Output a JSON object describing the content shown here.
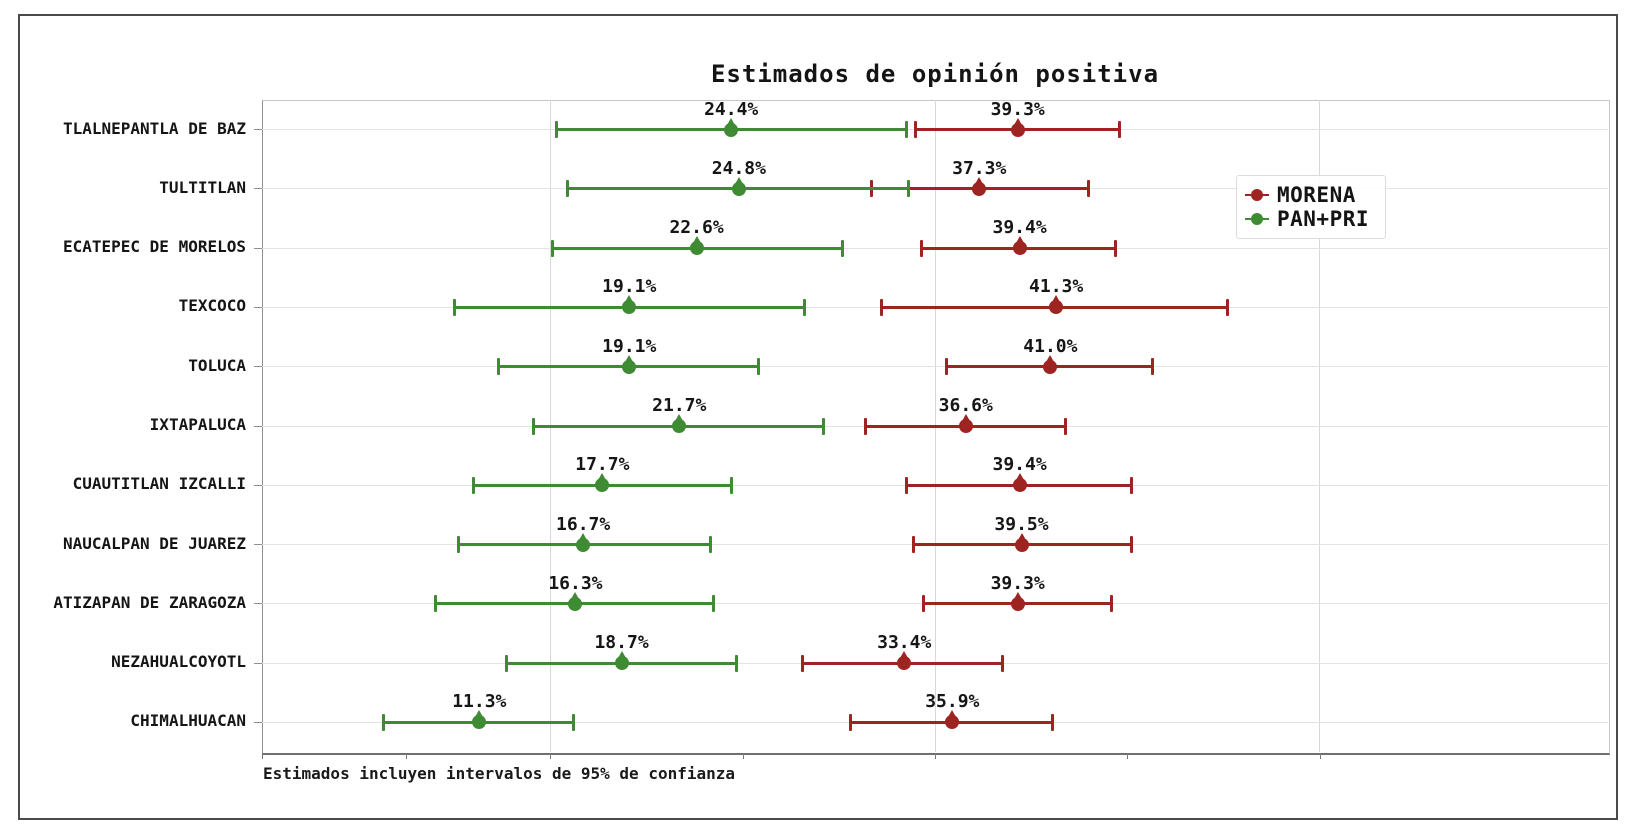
{
  "figure": {
    "title": "Estimados de opinión positiva",
    "footnote": "Estimados incluyen intervalos de 95% de confianza"
  },
  "legend": {
    "position": "upper right",
    "items": [
      {
        "label": "MORENA",
        "color": "#9e2421"
      },
      {
        "label": "PAN+PRI",
        "color": "#3f8b34"
      }
    ]
  },
  "chart_data": {
    "type": "scatter",
    "subtype": "horizontal-dot-plot-with-error-bars",
    "title": "Estimados de opinión positiva",
    "xlabel": "",
    "ylabel": "",
    "xlim": [
      0,
      70
    ],
    "grid": true,
    "gridlines_x_pct": [
      15,
      35,
      55
    ],
    "ticks_x_pct": [
      0,
      7.5,
      15,
      25,
      35,
      45,
      55
    ],
    "value_suffix": "%",
    "categories": [
      "TLALNEPANTLA DE BAZ",
      "TULTITLAN",
      "ECATEPEC DE MORELOS",
      "TEXCOCO",
      "TOLUCA",
      "IXTAPALUCA",
      "CUAUTITLAN IZCALLI",
      "NAUCALPAN DE JUAREZ",
      "ATIZAPAN DE ZARAGOZA",
      "NEZAHUALCOYOTL",
      "CHIMALHUACAN"
    ],
    "series": [
      {
        "name": "MORENA",
        "color": "#9e2421",
        "values": [
          39.3,
          37.3,
          39.4,
          41.3,
          41.0,
          36.6,
          39.4,
          39.5,
          39.3,
          33.4,
          35.9
        ],
        "ci_low": [
          34.0,
          31.7,
          34.3,
          32.2,
          35.6,
          31.4,
          33.5,
          33.9,
          34.4,
          28.1,
          30.6
        ],
        "ci_high": [
          44.6,
          43.0,
          44.4,
          50.2,
          46.3,
          41.8,
          45.2,
          45.2,
          44.2,
          38.5,
          41.1
        ]
      },
      {
        "name": "PAN+PRI",
        "color": "#3f8b34",
        "values": [
          24.4,
          24.8,
          22.6,
          19.1,
          19.1,
          21.7,
          17.7,
          16.7,
          16.3,
          18.7,
          11.3
        ],
        "ci_low": [
          15.3,
          15.9,
          15.1,
          10.0,
          12.3,
          14.1,
          11.0,
          10.2,
          9.0,
          12.7,
          6.3
        ],
        "ci_high": [
          33.5,
          33.6,
          30.2,
          28.2,
          25.8,
          29.2,
          24.4,
          23.3,
          23.5,
          24.7,
          16.2
        ]
      }
    ],
    "footnote": "Estimados incluyen intervalos de 95% de confianza"
  }
}
